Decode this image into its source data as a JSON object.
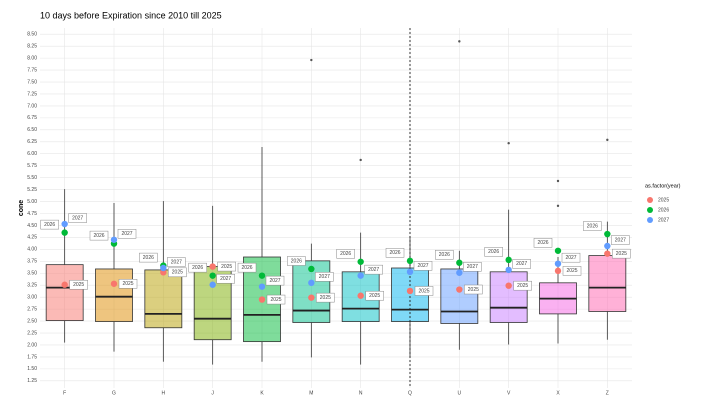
{
  "chart_data": {
    "type": "box",
    "title": "10 days before Expiration since 2010 till 2025",
    "y_label": "cone",
    "legend_title": "as.factor(year)",
    "categories": [
      "F",
      "G",
      "H",
      "J",
      "K",
      "M",
      "N",
      "Q",
      "U",
      "V",
      "X",
      "Z"
    ],
    "box_colors": [
      "#F8766D",
      "#DE8C00",
      "#B79F00",
      "#7CAE00",
      "#00BA38",
      "#00C08B",
      "#00BFC4",
      "#00B4F0",
      "#619CFF",
      "#C77CFF",
      "#F564E3",
      "#FF64B0"
    ],
    "boxes": {
      "whislo": [
        2.05,
        1.86,
        1.65,
        1.59,
        1.65,
        1.74,
        1.59,
        1.74,
        1.9,
        2.01,
        2.03,
        2.11
      ],
      "q1": [
        2.51,
        2.49,
        2.36,
        2.11,
        2.07,
        2.47,
        2.49,
        2.49,
        2.45,
        2.47,
        2.65,
        2.7
      ],
      "median": [
        3.2,
        3.01,
        2.65,
        2.55,
        2.63,
        2.72,
        2.76,
        2.74,
        2.7,
        2.78,
        2.97,
        3.2
      ],
      "q3": [
        3.68,
        3.59,
        3.57,
        3.64,
        3.84,
        3.76,
        3.53,
        3.61,
        3.59,
        3.53,
        3.3,
        3.87
      ],
      "whishi": [
        5.26,
        4.97,
        5.01,
        4.91,
        6.14,
        4.12,
        4.35,
        4.28,
        3.97,
        4.83,
        3.84,
        4.58
      ]
    },
    "outliers": [
      [],
      [],
      [],
      [],
      [],
      [
        7.96
      ],
      [
        5.87
      ],
      [],
      [
        8.35
      ],
      [
        6.22
      ],
      [
        5.43,
        4.91
      ],
      [
        6.29
      ]
    ],
    "series": [
      {
        "name": "2025",
        "color": "#F8766D",
        "values": [
          3.26,
          3.28,
          3.52,
          3.64,
          2.95,
          2.99,
          3.03,
          3.13,
          3.16,
          3.24,
          3.55,
          3.91
        ]
      },
      {
        "name": "2026",
        "color": "#00BA38",
        "values": [
          4.35,
          4.12,
          3.66,
          3.45,
          3.45,
          3.59,
          3.74,
          3.76,
          3.72,
          3.78,
          3.97,
          4.32
        ]
      },
      {
        "name": "2027",
        "color": "#619CFF",
        "values": [
          4.53,
          4.2,
          3.61,
          3.26,
          3.22,
          3.3,
          3.45,
          3.53,
          3.51,
          3.57,
          3.7,
          4.07
        ]
      }
    ],
    "vline_category": "Q",
    "ylim": [
      1.1,
      8.63
    ],
    "yticks": [
      {
        "value": 1.25,
        "label": "1.25"
      },
      {
        "value": 1.5,
        "label": "1.50"
      },
      {
        "value": 1.75,
        "label": "1.75"
      },
      {
        "value": 2.0,
        "label": "2.00"
      },
      {
        "value": 2.25,
        "label": "2.25"
      },
      {
        "value": 2.5,
        "label": "2.50"
      },
      {
        "value": 2.75,
        "label": "2.75"
      },
      {
        "value": 3.0,
        "label": "3.00"
      },
      {
        "value": 3.25,
        "label": "3.25"
      },
      {
        "value": 3.5,
        "label": "3.50"
      },
      {
        "value": 3.75,
        "label": "3.75"
      },
      {
        "value": 4.0,
        "label": "4.00"
      },
      {
        "value": 4.25,
        "label": "4.25"
      },
      {
        "value": 4.5,
        "label": "4.50"
      },
      {
        "value": 4.75,
        "label": "4.75"
      },
      {
        "value": 5.0,
        "label": "5.00"
      },
      {
        "value": 5.25,
        "label": "5.25"
      },
      {
        "value": 5.5,
        "label": "5.50"
      },
      {
        "value": 5.75,
        "label": "5.75"
      },
      {
        "value": 6.0,
        "label": "6.00"
      },
      {
        "value": 6.25,
        "label": "6.25"
      },
      {
        "value": 6.5,
        "label": "6.50"
      },
      {
        "value": 6.75,
        "label": "6.75"
      },
      {
        "value": 7.0,
        "label": "7.00"
      },
      {
        "value": 7.25,
        "label": "7.25"
      },
      {
        "value": 7.5,
        "label": "7.50"
      },
      {
        "value": 7.75,
        "label": "7.75"
      },
      {
        "value": 8.0,
        "label": "8.00"
      },
      {
        "value": 8.25,
        "label": "8.25"
      },
      {
        "value": 8.5,
        "label": "8.50"
      }
    ],
    "grid": true
  }
}
